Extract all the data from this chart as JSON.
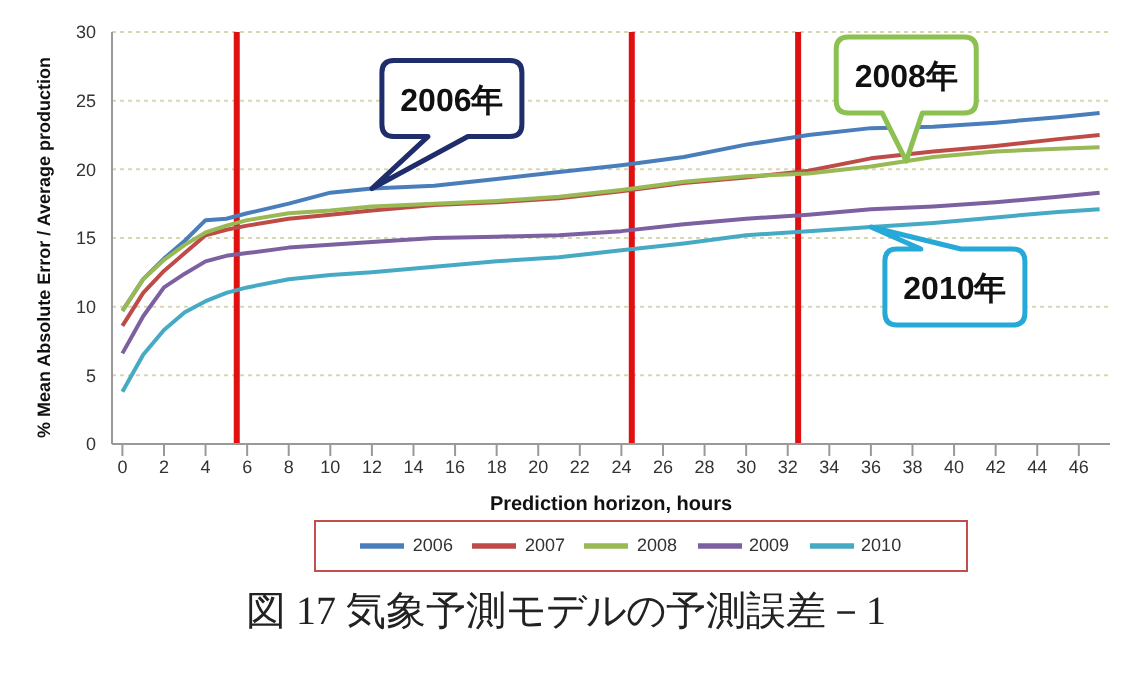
{
  "chart_data": {
    "type": "line",
    "title": "図 17 気象予測モデルの予測誤差－1",
    "xlabel": "Prediction horizon, hours",
    "ylabel": "% Mean Absolute Error / Average production",
    "x": [
      0,
      1,
      2,
      3,
      4,
      5,
      6,
      8,
      10,
      12,
      15,
      18,
      21,
      24,
      27,
      30,
      33,
      36,
      39,
      42,
      45,
      47
    ],
    "series": [
      {
        "name": "2006",
        "color": "#4a7ebb",
        "values": [
          9.7,
          12,
          13.5,
          14.8,
          16.3,
          16.4,
          16.8,
          17.5,
          18.3,
          18.6,
          18.8,
          19.3,
          19.8,
          20.3,
          20.9,
          21.8,
          22.5,
          23,
          23.1,
          23.4,
          23.8,
          24.1
        ]
      },
      {
        "name": "2007",
        "color": "#be4b48",
        "values": [
          8.6,
          11,
          12.6,
          13.9,
          15.2,
          15.6,
          15.9,
          16.4,
          16.7,
          17,
          17.4,
          17.6,
          17.9,
          18.4,
          19,
          19.4,
          19.9,
          20.8,
          21.3,
          21.7,
          22.2,
          22.5
        ]
      },
      {
        "name": "2008",
        "color": "#98b954",
        "values": [
          9.7,
          12,
          13.4,
          14.5,
          15.4,
          15.9,
          16.3,
          16.8,
          17,
          17.3,
          17.5,
          17.7,
          18,
          18.5,
          19.1,
          19.5,
          19.7,
          20.2,
          20.9,
          21.3,
          21.5,
          21.6
        ]
      },
      {
        "name": "2009",
        "color": "#7d60a0",
        "values": [
          6.6,
          9.3,
          11.4,
          12.4,
          13.3,
          13.7,
          13.9,
          14.3,
          14.5,
          14.7,
          15,
          15.1,
          15.2,
          15.5,
          16,
          16.4,
          16.7,
          17.1,
          17.3,
          17.6,
          18,
          18.3
        ]
      },
      {
        "name": "2010",
        "color": "#46aac5",
        "values": [
          3.8,
          6.5,
          8.3,
          9.6,
          10.4,
          11,
          11.4,
          12,
          12.3,
          12.5,
          12.9,
          13.3,
          13.6,
          14.1,
          14.6,
          15.2,
          15.5,
          15.8,
          16.1,
          16.5,
          16.9,
          17.1
        ]
      }
    ],
    "xlim": [
      -0.5,
      47.5
    ],
    "xticks": [
      0,
      2,
      4,
      6,
      8,
      10,
      12,
      14,
      16,
      18,
      20,
      22,
      24,
      26,
      28,
      30,
      32,
      34,
      36,
      38,
      40,
      42,
      44,
      46
    ],
    "ylim": [
      0,
      30
    ],
    "yticks": [
      0,
      5,
      10,
      15,
      20,
      25,
      30
    ],
    "grid": "y",
    "legend": "bottom",
    "marker": "none",
    "line_style": "solid",
    "ref_lines": [
      {
        "axis": "x",
        "value": 5.5,
        "color": "#e01010"
      },
      {
        "axis": "x",
        "value": 24.5,
        "color": "#e01010"
      },
      {
        "axis": "x",
        "value": 32.5,
        "color": "#e01010"
      }
    ],
    "annotations": [
      {
        "text": "2006年",
        "x": 12,
        "y": 18.6
      },
      {
        "text": "2008年",
        "x": 37.7,
        "y": 20.6
      },
      {
        "text": "2010年",
        "x": 36,
        "y": 15.8
      }
    ]
  }
}
